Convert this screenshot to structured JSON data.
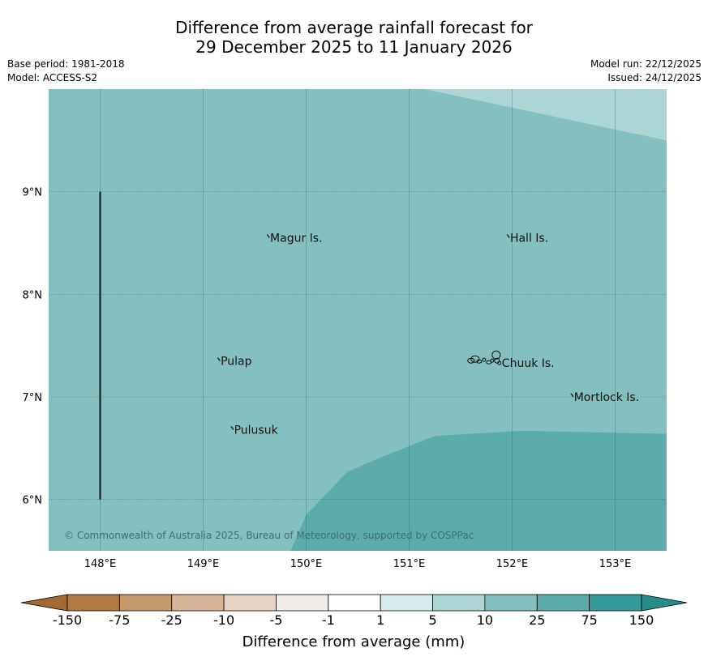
{
  "header": {
    "title_line1": "Difference from average rainfall forecast for",
    "title_line2": "29 December 2025 to 11 January 2026",
    "base_period": "Base period: 1981-2018",
    "model": "Model: ACCESS-S2",
    "model_run": "Model run: 22/12/2025",
    "issued": "Issued: 24/12/2025"
  },
  "map": {
    "extent": {
      "lon_min": 147.5,
      "lon_max": 153.5,
      "lat_min": 5.5,
      "lat_max": 10.0
    },
    "lon_ticks": [
      148,
      149,
      150,
      151,
      152,
      153
    ],
    "lon_labels": [
      "148°E",
      "149°E",
      "150°E",
      "151°E",
      "152°E",
      "153°E"
    ],
    "lat_ticks": [
      9,
      8,
      7,
      6
    ],
    "lat_labels": [
      "9°N",
      "8°N",
      "7°N",
      "6°N"
    ],
    "background_color": "#84c0bf",
    "zones": {
      "light": {
        "color": "#acd5d5",
        "polygon": [
          [
            151.15,
            10.0
          ],
          [
            153.5,
            10.0
          ],
          [
            153.5,
            9.5
          ]
        ]
      },
      "dark": {
        "color": "#5cacab",
        "polygon": [
          [
            149.85,
            5.5
          ],
          [
            150.0,
            5.85
          ],
          [
            150.4,
            6.27
          ],
          [
            150.7,
            6.4
          ],
          [
            151.25,
            6.62
          ],
          [
            152.1,
            6.67
          ],
          [
            153.5,
            6.64
          ],
          [
            153.5,
            5.5
          ]
        ]
      }
    },
    "places": [
      {
        "name": "Magur Is.",
        "lon": 149.65,
        "lat": 8.55
      },
      {
        "name": "Hall Is.",
        "lon": 151.98,
        "lat": 8.55
      },
      {
        "name": "Pulap",
        "lon": 149.17,
        "lat": 7.35
      },
      {
        "name": "Chuuk Is.",
        "lon": 151.9,
        "lat": 7.33
      },
      {
        "name": "Mortlock Is.",
        "lon": 152.6,
        "lat": 7.0
      },
      {
        "name": "Pulusuk",
        "lon": 149.3,
        "lat": 6.68
      }
    ],
    "copyright": "© Commonwealth of Australia 2025, Bureau of Meteorology, supported by COSPPac"
  },
  "colorbar": {
    "ticks": [
      "-150",
      "-75",
      "-25",
      "-10",
      "-5",
      "-1",
      "1",
      "5",
      "10",
      "25",
      "75",
      "150"
    ],
    "colors": [
      "#a36a2f",
      "#b27a42",
      "#c49a6c",
      "#d6b696",
      "#e6d3c3",
      "#f1eee9",
      "#ffffff",
      "#d6ebeb",
      "#acd5d5",
      "#84c0bf",
      "#5cacab",
      "#349998",
      "#268c8a"
    ],
    "label": "Difference from average (mm)"
  }
}
